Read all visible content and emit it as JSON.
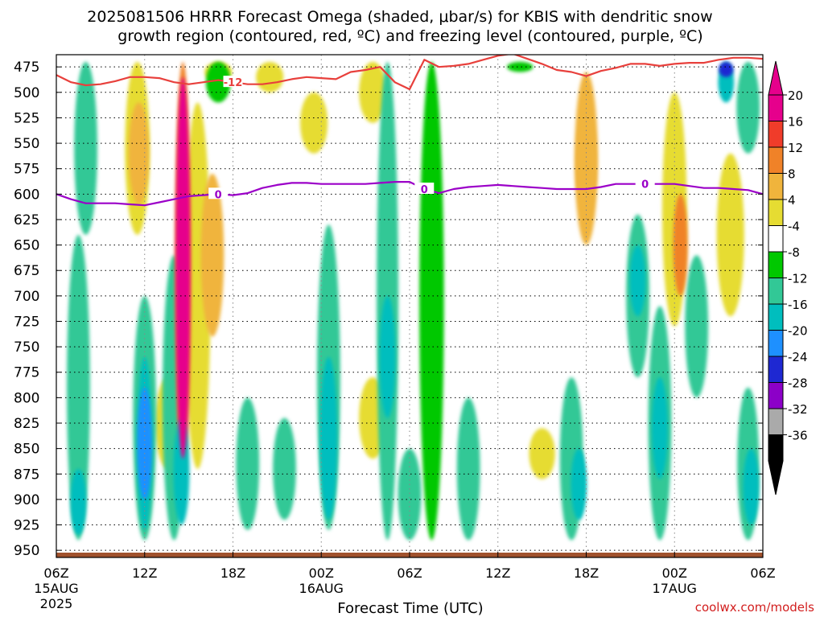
{
  "chart_data": {
    "type": "heatmap",
    "title_line1": "2025081506 HRRR Forecast Omega (shaded, μbar/s) for KBIS with dendritic snow",
    "title_line2": "growth region (contoured, red, ºC) and freezing level (contoured, purple, ºC)",
    "xlabel": "Forecast Time (UTC)",
    "credit": "coolwx.com/models",
    "x_ticks": [
      {
        "hour": 0,
        "line1": "06Z",
        "line2": "15AUG",
        "line3": "2025"
      },
      {
        "hour": 6,
        "line1": "12Z"
      },
      {
        "hour": 12,
        "line1": "18Z"
      },
      {
        "hour": 18,
        "line1": "00Z",
        "line2": "16AUG"
      },
      {
        "hour": 24,
        "line1": "06Z"
      },
      {
        "hour": 30,
        "line1": "12Z"
      },
      {
        "hour": 36,
        "line1": "18Z"
      },
      {
        "hour": 42,
        "line1": "00Z",
        "line2": "17AUG"
      },
      {
        "hour": 48,
        "line1": "06Z"
      }
    ],
    "xlim": [
      0,
      48
    ],
    "y_ticks": [
      "475",
      "500",
      "525",
      "550",
      "575",
      "600",
      "625",
      "650",
      "675",
      "700",
      "725",
      "750",
      "775",
      "800",
      "825",
      "850",
      "875",
      "900",
      "925",
      "950"
    ],
    "ylim": [
      463,
      957
    ],
    "colorbar": {
      "labels": [
        "20",
        "16",
        "12",
        "8",
        "4",
        "-4",
        "-8",
        "-12",
        "-16",
        "-20",
        "-24",
        "-28",
        "-32",
        "-36"
      ],
      "colors": [
        "#e6008c",
        "#f03c2a",
        "#f08228",
        "#f0b43c",
        "#e6dc32",
        "#ffffff",
        "#00c800",
        "#32c896",
        "#00bebe",
        "#1e90ff",
        "#1e28d2",
        "#8c00c8",
        "#aaaaaa",
        "#000000"
      ],
      "top_color": "#e6008c",
      "bottom_color": "#000000"
    },
    "dgz_contour": {
      "label": "-12",
      "color": "#e8403c",
      "points": [
        [
          0,
          483
        ],
        [
          1,
          490
        ],
        [
          2,
          493
        ],
        [
          3,
          492
        ],
        [
          4,
          489
        ],
        [
          5,
          485
        ],
        [
          6,
          485
        ],
        [
          7,
          486
        ],
        [
          8,
          490
        ],
        [
          9,
          492
        ],
        [
          10,
          490
        ],
        [
          11,
          488
        ],
        [
          12,
          490
        ],
        [
          13,
          492
        ],
        [
          14,
          492
        ],
        [
          15,
          490
        ],
        [
          16,
          487
        ],
        [
          17,
          485
        ],
        [
          18,
          486
        ],
        [
          19,
          487
        ],
        [
          20,
          480
        ],
        [
          21,
          478
        ],
        [
          22,
          475
        ],
        [
          23,
          490
        ],
        [
          24,
          497
        ],
        [
          25,
          468
        ],
        [
          26,
          475
        ],
        [
          27,
          474
        ],
        [
          28,
          472
        ],
        [
          29,
          468
        ],
        [
          30,
          464
        ],
        [
          31,
          462
        ],
        [
          32,
          467
        ],
        [
          33,
          472
        ],
        [
          34,
          478
        ],
        [
          35,
          480
        ],
        [
          36,
          484
        ],
        [
          37,
          479
        ],
        [
          38,
          476
        ],
        [
          39,
          472
        ],
        [
          40,
          472
        ],
        [
          41,
          474
        ],
        [
          42,
          472
        ],
        [
          43,
          471
        ],
        [
          44,
          471
        ],
        [
          45,
          468
        ],
        [
          46,
          466
        ],
        [
          47,
          466
        ],
        [
          48,
          467
        ]
      ]
    },
    "freezing_contour": {
      "label": "0",
      "color": "#9b00c8",
      "points": [
        [
          0,
          600
        ],
        [
          1,
          605
        ],
        [
          2,
          609
        ],
        [
          3,
          609
        ],
        [
          4,
          609
        ],
        [
          5,
          610
        ],
        [
          6,
          611
        ],
        [
          7,
          608
        ],
        [
          8,
          605
        ],
        [
          9,
          602
        ],
        [
          10,
          601
        ],
        [
          11,
          600
        ],
        [
          12,
          601
        ],
        [
          13,
          599
        ],
        [
          14,
          594
        ],
        [
          15,
          591
        ],
        [
          16,
          589
        ],
        [
          17,
          589
        ],
        [
          18,
          590
        ],
        [
          19,
          590
        ],
        [
          20,
          590
        ],
        [
          21,
          590
        ],
        [
          22,
          589
        ],
        [
          23,
          588
        ],
        [
          24,
          588
        ],
        [
          25,
          595
        ],
        [
          26,
          599
        ],
        [
          27,
          595
        ],
        [
          28,
          593
        ],
        [
          29,
          592
        ],
        [
          30,
          591
        ],
        [
          31,
          592
        ],
        [
          32,
          593
        ],
        [
          33,
          594
        ],
        [
          34,
          595
        ],
        [
          35,
          595
        ],
        [
          36,
          595
        ],
        [
          37,
          593
        ],
        [
          38,
          590
        ],
        [
          39,
          590
        ],
        [
          40,
          590
        ],
        [
          41,
          590
        ],
        [
          42,
          590
        ],
        [
          43,
          592
        ],
        [
          44,
          594
        ],
        [
          45,
          594
        ],
        [
          46,
          595
        ],
        [
          47,
          596
        ],
        [
          48,
          600
        ]
      ]
    },
    "omega_features": [
      {
        "hour": 8.6,
        "p_top": 485,
        "p_bot": 860,
        "value": 22
      },
      {
        "hour": 8.6,
        "p_top": 470,
        "p_bot": 875,
        "value": 13
      },
      {
        "hour": 9.6,
        "p_top": 510,
        "p_bot": 870,
        "value": 6
      },
      {
        "hour": 7.6,
        "p_top": 780,
        "p_bot": 870,
        "value": 6
      },
      {
        "hour": 5.5,
        "p_top": 470,
        "p_bot": 640,
        "value": 7
      },
      {
        "hour": 5.6,
        "p_top": 510,
        "p_bot": 610,
        "value": 10
      },
      {
        "hour": 10.6,
        "p_top": 580,
        "p_bot": 740,
        "value": 8
      },
      {
        "hour": 36.0,
        "p_top": 480,
        "p_bot": 650,
        "value": 8
      },
      {
        "hour": 36.0,
        "p_top": 520,
        "p_bot": 620,
        "value": 10
      },
      {
        "hour": 42.0,
        "p_top": 500,
        "p_bot": 730,
        "value": 7
      },
      {
        "hour": 42.4,
        "p_top": 600,
        "p_bot": 700,
        "value": 15
      },
      {
        "hour": 45.8,
        "p_top": 560,
        "p_bot": 720,
        "value": 5
      },
      {
        "hour": 21.5,
        "p_top": 470,
        "p_bot": 530,
        "value": 5
      },
      {
        "hour": 21.5,
        "p_top": 780,
        "p_bot": 860,
        "value": 5
      },
      {
        "hour": 14.5,
        "p_top": 470,
        "p_bot": 500,
        "value": 5
      },
      {
        "hour": 17.5,
        "p_top": 500,
        "p_bot": 560,
        "value": 5
      },
      {
        "hour": 33.0,
        "p_top": 830,
        "p_bot": 880,
        "value": 6
      },
      {
        "hour": 11.0,
        "p_top": 470,
        "p_bot": 490,
        "value": 5
      },
      {
        "hour": 2.0,
        "p_top": 470,
        "p_bot": 640,
        "value": -8
      },
      {
        "hour": 1.5,
        "p_top": 640,
        "p_bot": 940,
        "value": -8
      },
      {
        "hour": 1.5,
        "p_top": 870,
        "p_bot": 935,
        "value": -13
      },
      {
        "hour": 6.0,
        "p_top": 700,
        "p_bot": 940,
        "value": -8
      },
      {
        "hour": 6.0,
        "p_top": 760,
        "p_bot": 930,
        "value": -14
      },
      {
        "hour": 6.0,
        "p_top": 790,
        "p_bot": 900,
        "value": -18
      },
      {
        "hour": 8.0,
        "p_top": 660,
        "p_bot": 940,
        "value": -8
      },
      {
        "hour": 8.5,
        "p_top": 820,
        "p_bot": 925,
        "value": -13
      },
      {
        "hour": 11.0,
        "p_top": 470,
        "p_bot": 510,
        "value": -7
      },
      {
        "hour": 13.0,
        "p_top": 800,
        "p_bot": 930,
        "value": -8
      },
      {
        "hour": 15.5,
        "p_top": 820,
        "p_bot": 920,
        "value": -8
      },
      {
        "hour": 18.5,
        "p_top": 630,
        "p_bot": 930,
        "value": -8
      },
      {
        "hour": 18.5,
        "p_top": 760,
        "p_bot": 920,
        "value": -12
      },
      {
        "hour": 22.5,
        "p_top": 470,
        "p_bot": 940,
        "value": -9
      },
      {
        "hour": 22.5,
        "p_top": 700,
        "p_bot": 820,
        "value": -13
      },
      {
        "hour": 25.5,
        "p_top": 470,
        "p_bot": 940,
        "value": -7
      },
      {
        "hour": 24.0,
        "p_top": 850,
        "p_bot": 940,
        "value": -8
      },
      {
        "hour": 28.0,
        "p_top": 800,
        "p_bot": 940,
        "value": -8
      },
      {
        "hour": 31.5,
        "p_top": 470,
        "p_bot": 480,
        "value": -6
      },
      {
        "hour": 35.0,
        "p_top": 780,
        "p_bot": 940,
        "value": -8
      },
      {
        "hour": 35.5,
        "p_top": 850,
        "p_bot": 920,
        "value": -13
      },
      {
        "hour": 39.5,
        "p_top": 620,
        "p_bot": 780,
        "value": -8
      },
      {
        "hour": 39.5,
        "p_top": 650,
        "p_bot": 720,
        "value": -13
      },
      {
        "hour": 41.0,
        "p_top": 710,
        "p_bot": 940,
        "value": -8
      },
      {
        "hour": 41.0,
        "p_top": 780,
        "p_bot": 880,
        "value": -13
      },
      {
        "hour": 43.5,
        "p_top": 660,
        "p_bot": 800,
        "value": -8
      },
      {
        "hour": 47.0,
        "p_top": 470,
        "p_bot": 560,
        "value": -8
      },
      {
        "hour": 47.0,
        "p_top": 790,
        "p_bot": 940,
        "value": -9
      },
      {
        "hour": 47.2,
        "p_top": 850,
        "p_bot": 925,
        "value": -13
      },
      {
        "hour": 45.5,
        "p_top": 470,
        "p_bot": 510,
        "value": -13
      },
      {
        "hour": 45.5,
        "p_top": 470,
        "p_bot": 485,
        "value": -22
      }
    ]
  }
}
